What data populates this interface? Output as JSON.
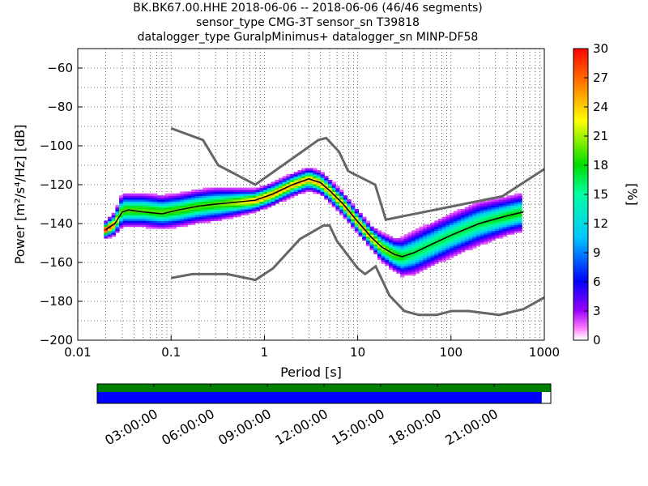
{
  "title_lines": [
    "BK.BK67.00.HHE   2018-06-06 -- 2018-06-06  (46/46 segments)",
    "sensor_type CMG-3T sensor_sn T39818",
    "datalogger_type GuralpMinimus+ datalogger_sn MINP-DF58"
  ],
  "chart_data": {
    "type": "heatmap",
    "xlabel": "Period [s]",
    "ylabel": "Power [m²/s⁴/Hz] [dB]",
    "xscale": "log",
    "xlim": [
      0.01,
      1000
    ],
    "ylim": [
      -200,
      -50
    ],
    "x_ticks": [
      "0.01",
      "0.1",
      "1",
      "10",
      "100",
      "1000"
    ],
    "y_ticks": [
      "−60",
      "−80",
      "−100",
      "−120",
      "−140",
      "−160",
      "−180",
      "−200"
    ],
    "grid": true,
    "colorbar": {
      "label": "[%]",
      "range": [
        0,
        30
      ],
      "ticks": [
        "0",
        "3",
        "6",
        "9",
        "12",
        "15",
        "18",
        "21",
        "24",
        "27",
        "30"
      ],
      "colormap": "pqlx"
    },
    "noise_models": [
      {
        "name": "NHNM",
        "color": "#666666",
        "points": [
          [
            0.1,
            -91
          ],
          [
            0.22,
            -97
          ],
          [
            0.32,
            -110
          ],
          [
            0.8,
            -120
          ],
          [
            3.8,
            -97
          ],
          [
            4.6,
            -96
          ],
          [
            6.3,
            -103
          ],
          [
            7.9,
            -113
          ],
          [
            15.4,
            -120
          ],
          [
            20,
            -138
          ],
          [
            354,
            -126
          ],
          [
            1000,
            -112
          ]
        ]
      },
      {
        "name": "NLNM",
        "color": "#666666",
        "points": [
          [
            0.1,
            -168
          ],
          [
            0.17,
            -166
          ],
          [
            0.4,
            -166
          ],
          [
            0.8,
            -169
          ],
          [
            1.24,
            -163
          ],
          [
            2.4,
            -148
          ],
          [
            4.3,
            -141
          ],
          [
            5,
            -141
          ],
          [
            6,
            -149
          ],
          [
            10,
            -163
          ],
          [
            12,
            -166
          ],
          [
            15.6,
            -162
          ],
          [
            21.9,
            -177
          ],
          [
            31.6,
            -185
          ],
          [
            45,
            -187
          ],
          [
            70,
            -187
          ],
          [
            101,
            -185
          ],
          [
            154,
            -185
          ],
          [
            328,
            -187
          ],
          [
            600,
            -184
          ],
          [
            1000,
            -178
          ]
        ]
      }
    ],
    "mean_curve": {
      "color": "#000000",
      "points": [
        [
          0.02,
          -143
        ],
        [
          0.025,
          -140
        ],
        [
          0.03,
          -134
        ],
        [
          0.035,
          -133
        ],
        [
          0.05,
          -134
        ],
        [
          0.08,
          -135
        ],
        [
          0.12,
          -133
        ],
        [
          0.2,
          -131
        ],
        [
          0.3,
          -130
        ],
        [
          0.5,
          -129
        ],
        [
          0.8,
          -128
        ],
        [
          1.2,
          -125
        ],
        [
          2,
          -120
        ],
        [
          3,
          -117
        ],
        [
          4,
          -119
        ],
        [
          5,
          -123
        ],
        [
          7,
          -130
        ],
        [
          10,
          -139
        ],
        [
          14,
          -147
        ],
        [
          18,
          -152
        ],
        [
          25,
          -156
        ],
        [
          30,
          -157
        ],
        [
          40,
          -155
        ],
        [
          60,
          -151
        ],
        [
          100,
          -146
        ],
        [
          200,
          -140
        ],
        [
          400,
          -136
        ],
        [
          600,
          -134
        ]
      ]
    },
    "density_band": {
      "points": [
        [
          0.02,
          -143,
          3
        ],
        [
          0.025,
          -140,
          4
        ],
        [
          0.03,
          -133,
          6
        ],
        [
          0.05,
          -133,
          6
        ],
        [
          0.08,
          -134,
          6
        ],
        [
          0.12,
          -133,
          6
        ],
        [
          0.2,
          -131,
          6
        ],
        [
          0.3,
          -130,
          6
        ],
        [
          0.5,
          -129,
          5
        ],
        [
          0.8,
          -128,
          4
        ],
        [
          1.2,
          -125,
          4
        ],
        [
          2,
          -120,
          4
        ],
        [
          3,
          -117,
          4
        ],
        [
          4,
          -119,
          4
        ],
        [
          5,
          -123,
          4
        ],
        [
          7,
          -130,
          4
        ],
        [
          10,
          -139,
          4
        ],
        [
          14,
          -147,
          4
        ],
        [
          18,
          -152,
          5
        ],
        [
          25,
          -156,
          6
        ],
        [
          30,
          -157,
          7
        ],
        [
          40,
          -155,
          8
        ],
        [
          60,
          -151,
          8
        ],
        [
          100,
          -146,
          8
        ],
        [
          200,
          -140,
          8
        ],
        [
          400,
          -136,
          7
        ],
        [
          600,
          -134,
          7
        ]
      ]
    }
  },
  "timeline": {
    "tick_labels": [
      "03:00:00",
      "06:00:00",
      "09:00:00",
      "12:00:00",
      "15:00:00",
      "18:00:00",
      "21:00:00"
    ],
    "data_fraction": 0.98,
    "color_top": "#008000",
    "color_bottom": "#0000ff"
  }
}
